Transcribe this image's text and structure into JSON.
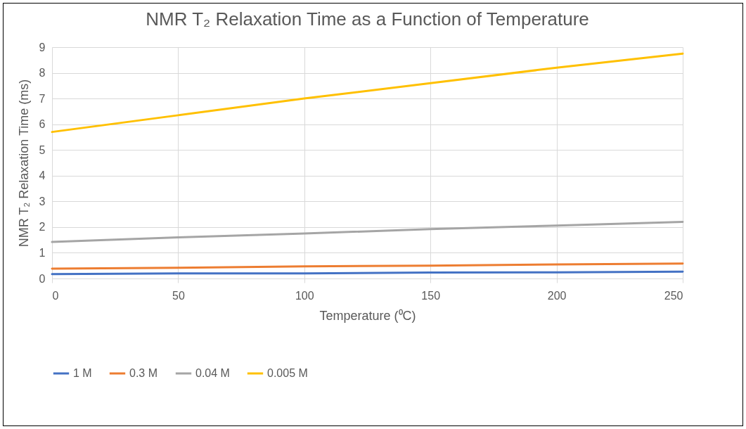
{
  "chart_data": {
    "type": "line",
    "title": "NMR T₂ Relaxation Time as a Function of Temperature",
    "xlabel": "Temperature (⁰C)",
    "ylabel": "NMR T₂ Relaxation Time (ms)",
    "x": [
      0,
      50,
      100,
      150,
      200,
      250
    ],
    "series": [
      {
        "name": "1 M",
        "color": "#4472c4",
        "values": [
          0.17,
          0.2,
          0.2,
          0.23,
          0.24,
          0.27
        ]
      },
      {
        "name": "0.3 M",
        "color": "#ed7d31",
        "values": [
          0.38,
          0.42,
          0.47,
          0.5,
          0.55,
          0.58
        ]
      },
      {
        "name": "0.04 M",
        "color": "#a5a5a5",
        "values": [
          1.42,
          1.6,
          1.75,
          1.92,
          2.06,
          2.2
        ]
      },
      {
        "name": "0.005 M",
        "color": "#ffc000",
        "values": [
          5.7,
          6.35,
          7.0,
          7.6,
          8.2,
          8.75
        ]
      }
    ],
    "xlim": [
      0,
      250
    ],
    "xticks": [
      0,
      50,
      100,
      150,
      200,
      250
    ],
    "ylim": [
      0,
      9
    ],
    "yticks": [
      0,
      1,
      2,
      3,
      4,
      5,
      6,
      7,
      8,
      9
    ],
    "grid": true,
    "legend": "bottom",
    "marker": "none",
    "line_style": "solid"
  }
}
